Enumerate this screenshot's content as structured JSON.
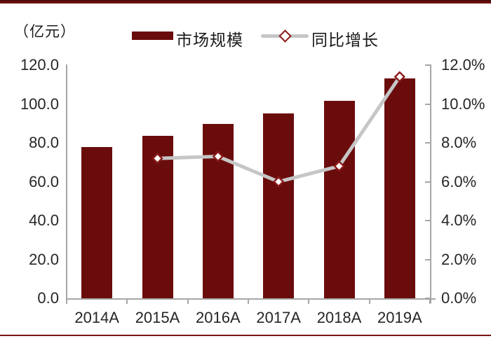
{
  "unit_label": "（亿元）",
  "legend": {
    "items": [
      {
        "label": "市场规模",
        "type": "bar",
        "color": "#6b0c0c"
      },
      {
        "label": "同比增长",
        "type": "line",
        "color": "#c6c6c6",
        "marker_border": "#8c1a1a"
      }
    ]
  },
  "chart_data": {
    "type": "bar+line",
    "categories": [
      "2014A",
      "2015A",
      "2016A",
      "2017A",
      "2018A",
      "2019A"
    ],
    "series": [
      {
        "name": "市场规模",
        "type": "bar",
        "axis": "left",
        "unit": "亿元",
        "values": [
          78.0,
          83.6,
          89.7,
          95.1,
          101.6,
          113.2
        ]
      },
      {
        "name": "同比增长",
        "type": "line",
        "axis": "right",
        "unit": "%",
        "values": [
          null,
          7.2,
          7.3,
          6.0,
          6.8,
          11.4
        ]
      }
    ],
    "left_axis": {
      "min": 0,
      "max": 120,
      "step": 20,
      "tick_labels": [
        "0.0",
        "20.0",
        "40.0",
        "60.0",
        "80.0",
        "100.0",
        "120.0"
      ]
    },
    "right_axis": {
      "min": 0,
      "max": 12,
      "step": 2,
      "tick_labels": [
        "0.0%",
        "2.0%",
        "4.0%",
        "6.0%",
        "8.0%",
        "10.0%",
        "12.0%"
      ]
    },
    "grid": false,
    "legend_position": "top-center"
  },
  "colors": {
    "bar": "#6b0c0c",
    "line": "#c6c6c6",
    "marker_fill": "#ffffff",
    "marker_border": "#8c1a1a",
    "axis": "#a6a6a6",
    "page_border": "#701112",
    "text": "#262626"
  }
}
